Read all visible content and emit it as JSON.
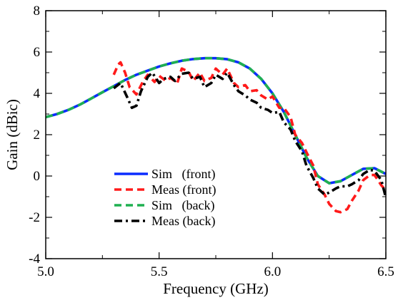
{
  "chart_data": {
    "type": "line",
    "xlabel": "Frequency (GHz)",
    "ylabel": "Gain (dBic)",
    "xlim": [
      5.0,
      6.5
    ],
    "ylim": [
      -4,
      8
    ],
    "xticks": [
      5.0,
      5.5,
      6.0,
      6.5
    ],
    "xtick_labels": [
      "5.0",
      "5.5",
      "6.0",
      "6.5"
    ],
    "yticks": [
      -4,
      -2,
      0,
      2,
      4,
      6,
      8
    ],
    "ytick_labels": [
      "-4",
      "-2",
      "0",
      "2",
      "4",
      "6",
      "8"
    ],
    "grid": false,
    "legend_position": "bottom-left",
    "series": [
      {
        "name": "Sim   (front)",
        "color": "#0a2cff",
        "dash": "solid",
        "x": [
          5.0,
          5.05,
          5.1,
          5.15,
          5.2,
          5.25,
          5.3,
          5.35,
          5.4,
          5.45,
          5.5,
          5.55,
          5.6,
          5.65,
          5.7,
          5.75,
          5.8,
          5.85,
          5.9,
          5.95,
          6.0,
          6.05,
          6.1,
          6.15,
          6.2,
          6.25,
          6.3,
          6.35,
          6.4,
          6.45,
          6.5
        ],
        "y": [
          2.85,
          3.0,
          3.2,
          3.45,
          3.75,
          4.05,
          4.35,
          4.65,
          4.9,
          5.1,
          5.3,
          5.45,
          5.58,
          5.66,
          5.7,
          5.7,
          5.65,
          5.5,
          5.2,
          4.7,
          4.0,
          3.1,
          2.0,
          0.9,
          0.0,
          -0.35,
          -0.25,
          0.05,
          0.35,
          0.38,
          0.1
        ]
      },
      {
        "name": "Meas (front)",
        "color": "#ff1a1a",
        "dash": "dashed",
        "x": [
          5.3,
          5.32,
          5.33,
          5.35,
          5.37,
          5.4,
          5.43,
          5.45,
          5.48,
          5.5,
          5.53,
          5.55,
          5.58,
          5.6,
          5.63,
          5.65,
          5.68,
          5.7,
          5.73,
          5.75,
          5.78,
          5.8,
          5.83,
          5.85,
          5.88,
          5.9,
          5.93,
          5.95,
          5.98,
          6.0,
          6.03,
          6.05,
          6.08,
          6.1,
          6.13,
          6.15,
          6.18,
          6.2,
          6.23,
          6.25,
          6.28,
          6.3,
          6.33,
          6.35,
          6.38,
          6.4,
          6.43,
          6.45,
          6.48,
          6.5
        ],
        "y": [
          4.9,
          5.4,
          5.5,
          5.0,
          4.3,
          3.95,
          4.6,
          4.9,
          4.55,
          4.85,
          4.6,
          4.75,
          4.5,
          5.2,
          5.05,
          4.6,
          5.0,
          4.6,
          4.75,
          5.2,
          4.9,
          5.2,
          4.5,
          4.3,
          4.4,
          4.1,
          4.15,
          3.9,
          3.7,
          3.85,
          3.3,
          3.3,
          2.85,
          2.0,
          1.6,
          1.15,
          0.5,
          -0.4,
          -0.9,
          -1.35,
          -1.7,
          -1.75,
          -1.6,
          -1.2,
          -0.7,
          -0.2,
          0.05,
          0.05,
          -0.45,
          -0.7
        ]
      },
      {
        "name": "Sim   (back)",
        "color": "#1fb050",
        "dash": "dashed",
        "x": [
          5.0,
          5.05,
          5.1,
          5.15,
          5.2,
          5.25,
          5.3,
          5.35,
          5.4,
          5.45,
          5.5,
          5.55,
          5.6,
          5.65,
          5.7,
          5.75,
          5.8,
          5.85,
          5.9,
          5.95,
          6.0,
          6.05,
          6.1,
          6.15,
          6.2,
          6.25,
          6.3,
          6.35,
          6.4,
          6.45,
          6.5
        ],
        "y": [
          2.85,
          3.0,
          3.2,
          3.45,
          3.75,
          4.05,
          4.35,
          4.65,
          4.9,
          5.1,
          5.3,
          5.45,
          5.58,
          5.66,
          5.7,
          5.7,
          5.65,
          5.5,
          5.2,
          4.7,
          4.0,
          3.1,
          2.0,
          0.9,
          0.0,
          -0.35,
          -0.25,
          0.05,
          0.35,
          0.38,
          0.1
        ]
      },
      {
        "name": "Meas (back)",
        "color": "#000000",
        "dash": "dashdot",
        "x": [
          5.3,
          5.33,
          5.36,
          5.38,
          5.4,
          5.42,
          5.45,
          5.47,
          5.5,
          5.52,
          5.55,
          5.57,
          5.6,
          5.63,
          5.65,
          5.68,
          5.7,
          5.73,
          5.75,
          5.78,
          5.8,
          5.83,
          5.85,
          5.88,
          5.9,
          5.93,
          5.95,
          5.98,
          6.0,
          6.03,
          6.05,
          6.08,
          6.1,
          6.13,
          6.15,
          6.18,
          6.2,
          6.23,
          6.25,
          6.28,
          6.3,
          6.33,
          6.35,
          6.38,
          6.4,
          6.43,
          6.45,
          6.48,
          6.5
        ],
        "y": [
          4.25,
          4.5,
          3.8,
          3.3,
          3.4,
          4.1,
          4.8,
          5.0,
          4.5,
          4.7,
          4.8,
          4.6,
          4.95,
          5.0,
          4.7,
          4.8,
          4.3,
          4.5,
          4.9,
          4.7,
          5.0,
          4.4,
          4.1,
          3.9,
          3.7,
          3.55,
          3.3,
          3.2,
          3.05,
          3.1,
          2.6,
          2.25,
          1.7,
          1.2,
          0.5,
          -0.1,
          -0.6,
          -0.9,
          -0.8,
          -0.6,
          -0.5,
          -0.5,
          -0.4,
          -0.2,
          0.1,
          0.3,
          0.25,
          -0.2,
          -1.05
        ]
      }
    ]
  }
}
